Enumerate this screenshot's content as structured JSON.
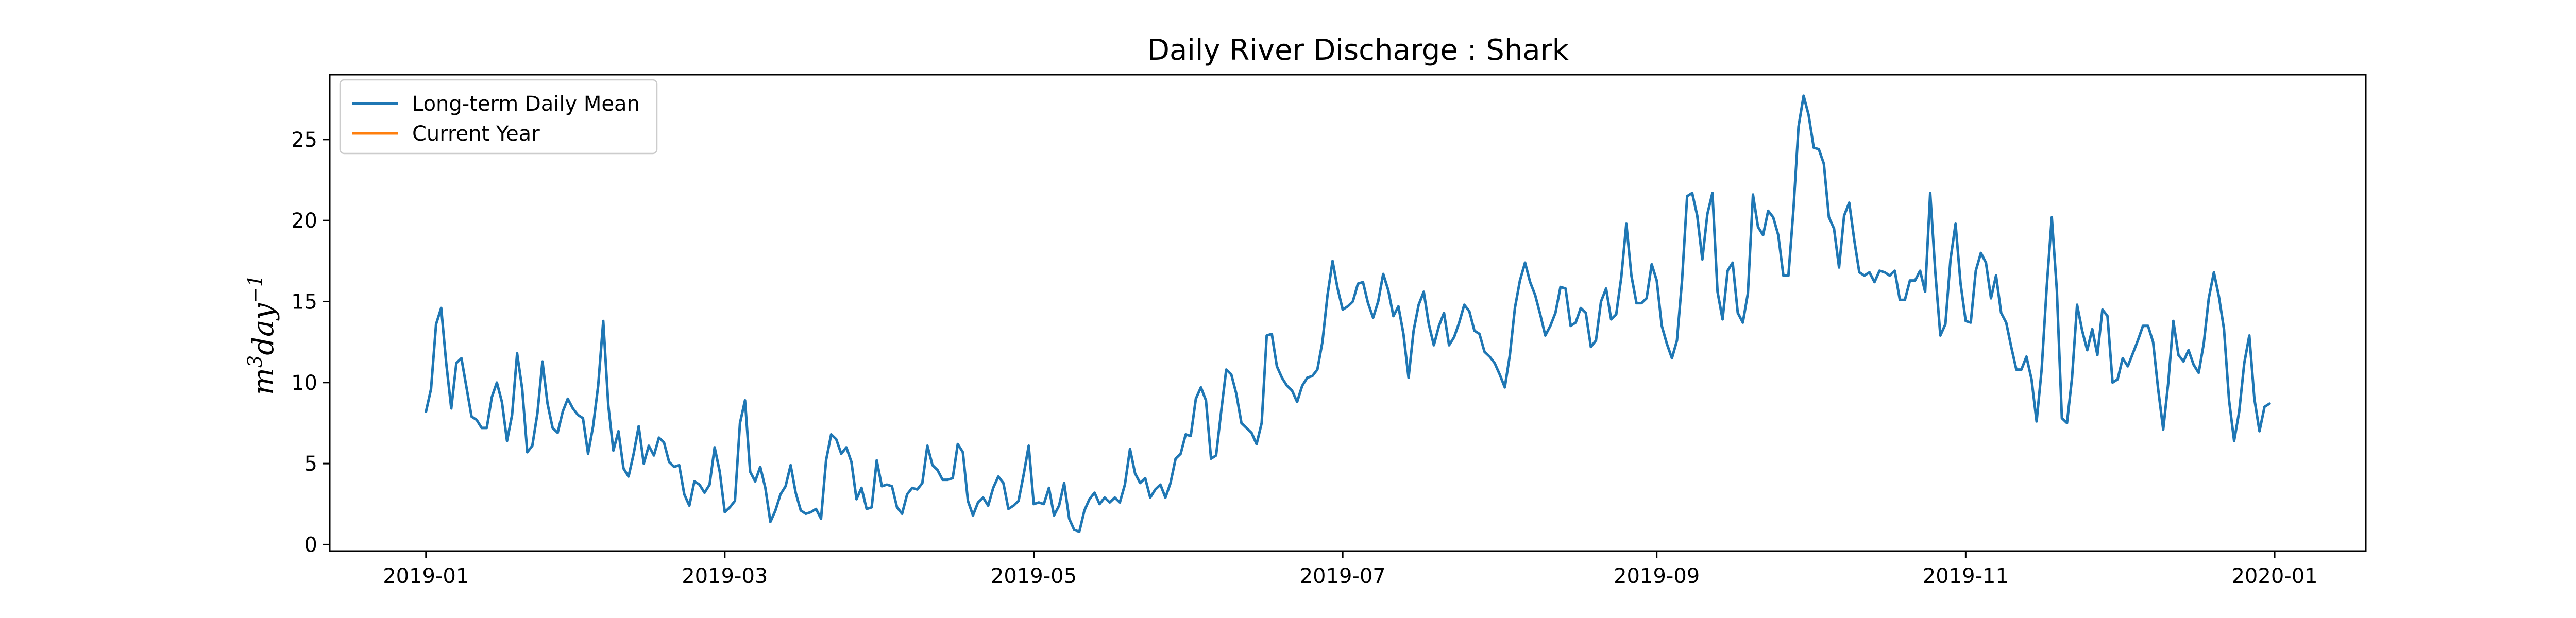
{
  "chart_data": {
    "type": "line",
    "title": "Daily River Discharge : Shark",
    "xlabel": "",
    "ylabel_base": "m",
    "ylabel_sup1": "3",
    "ylabel_mid": "day",
    "ylabel_sup2": "−1",
    "x_start": "2019-01-01",
    "x_end": "2019-12-31",
    "xlim": [
      "2018-12-13",
      "2020-01-19"
    ],
    "ylim": [
      -0.4,
      29.0
    ],
    "x_ticks": [
      "2019-01",
      "2019-03",
      "2019-05",
      "2019-07",
      "2019-09",
      "2019-11",
      "2020-01"
    ],
    "y_ticks": [
      0,
      5,
      10,
      15,
      20,
      25
    ],
    "grid": false,
    "legend_position": "top-left",
    "series": [
      {
        "name": "Long-term Daily Mean",
        "color": "#1f77b4",
        "values": [
          8.2,
          9.6,
          13.6,
          14.6,
          11.2,
          8.4,
          11.2,
          11.5,
          9.7,
          7.9,
          7.7,
          7.2,
          7.2,
          9.1,
          10.0,
          8.8,
          6.4,
          8.0,
          11.8,
          9.6,
          5.7,
          6.1,
          8.1,
          11.3,
          8.7,
          7.2,
          6.9,
          8.2,
          9.0,
          8.4,
          8.0,
          7.8,
          5.6,
          7.3,
          9.8,
          13.8,
          8.6,
          5.8,
          7.0,
          4.7,
          4.2,
          5.6,
          7.3,
          5.0,
          6.1,
          5.5,
          6.6,
          6.3,
          5.1,
          4.8,
          4.9,
          3.1,
          2.4,
          3.9,
          3.7,
          3.2,
          3.7,
          6.0,
          4.5,
          2.0,
          2.3,
          2.7,
          7.5,
          8.9,
          4.5,
          3.9,
          4.8,
          3.5,
          1.4,
          2.1,
          3.1,
          3.6,
          4.9,
          3.2,
          2.1,
          1.9,
          2.0,
          2.2,
          1.6,
          5.2,
          6.8,
          6.5,
          5.6,
          6.0,
          5.1,
          2.8,
          3.5,
          2.2,
          2.3,
          5.2,
          3.6,
          3.7,
          3.6,
          2.3,
          1.9,
          3.1,
          3.5,
          3.4,
          3.8,
          6.1,
          4.9,
          4.6,
          4.0,
          4.0,
          4.1,
          6.2,
          5.7,
          2.7,
          1.8,
          2.6,
          2.9,
          2.4,
          3.5,
          4.2,
          3.8,
          2.2,
          2.4,
          2.7,
          4.3,
          6.1,
          2.5,
          2.6,
          2.5,
          3.5,
          1.8,
          2.4,
          3.8,
          1.6,
          0.9,
          0.8,
          2.1,
          2.8,
          3.2,
          2.5,
          2.9,
          2.6,
          2.9,
          2.6,
          3.7,
          5.9,
          4.4,
          3.8,
          4.1,
          2.9,
          3.4,
          3.7,
          2.9,
          3.8,
          5.3,
          5.6,
          6.8,
          6.7,
          9.0,
          9.7,
          8.9,
          5.3,
          5.5,
          8.2,
          10.8,
          10.5,
          9.3,
          7.5,
          7.2,
          6.9,
          6.2,
          7.5,
          12.9,
          13.0,
          11.0,
          10.3,
          9.8,
          9.5,
          8.8,
          9.8,
          10.3,
          10.4,
          10.8,
          12.5,
          15.4,
          17.5,
          15.8,
          14.5,
          14.7,
          15.0,
          16.1,
          16.2,
          14.9,
          14.0,
          15.0,
          16.7,
          15.7,
          14.1,
          14.7,
          13.0,
          10.3,
          13.2,
          14.8,
          15.6,
          13.6,
          12.3,
          13.5,
          14.3,
          12.3,
          12.8,
          13.7,
          14.8,
          14.4,
          13.2,
          13.0,
          11.9,
          11.6,
          11.2,
          10.5,
          9.7,
          11.7,
          14.6,
          16.3,
          17.4,
          16.2,
          15.4,
          14.2,
          12.9,
          13.5,
          14.3,
          15.9,
          15.8,
          13.5,
          13.7,
          14.6,
          14.3,
          12.2,
          12.6,
          15.0,
          15.8,
          13.9,
          14.2,
          16.5,
          19.8,
          16.6,
          14.9,
          14.9,
          15.2,
          17.3,
          16.3,
          13.5,
          12.4,
          11.5,
          12.6,
          16.3,
          21.5,
          21.7,
          20.3,
          17.6,
          20.4,
          21.7,
          15.6,
          13.9,
          16.9,
          17.4,
          14.3,
          13.7,
          15.5,
          21.6,
          19.6,
          19.1,
          20.6,
          20.2,
          19.1,
          16.6,
          16.6,
          20.7,
          25.8,
          27.7,
          26.5,
          24.5,
          24.4,
          23.5,
          20.2,
          19.5,
          17.1,
          20.3,
          21.1,
          18.8,
          16.8,
          16.6,
          16.8,
          16.2,
          16.9,
          16.8,
          16.6,
          16.9,
          15.1,
          15.1,
          16.3,
          16.3,
          16.9,
          15.6,
          21.7,
          16.8,
          12.9,
          13.6,
          17.6,
          19.8,
          16.1,
          13.8,
          13.7,
          16.9,
          18.0,
          17.4,
          15.2,
          16.6,
          14.3,
          13.7,
          12.2,
          10.8,
          10.8,
          11.6,
          10.2,
          7.6,
          10.8,
          15.9,
          20.2,
          15.7,
          7.8,
          7.5,
          10.3,
          14.8,
          13.2,
          12.0,
          13.3,
          11.7,
          14.5,
          14.1,
          10.0,
          10.2,
          11.5,
          11.0,
          11.8,
          12.6,
          13.5,
          13.5,
          12.5,
          9.6,
          7.1,
          10.0,
          13.8,
          11.7,
          11.3,
          12.0,
          11.1,
          10.6,
          12.4,
          15.2,
          16.8,
          15.3,
          13.3,
          8.9,
          6.4,
          8.2,
          11.2,
          12.9,
          9.0,
          7.0,
          8.5,
          8.7
        ]
      },
      {
        "name": "Current Year",
        "color": "#ff7f0e",
        "values": []
      }
    ]
  }
}
